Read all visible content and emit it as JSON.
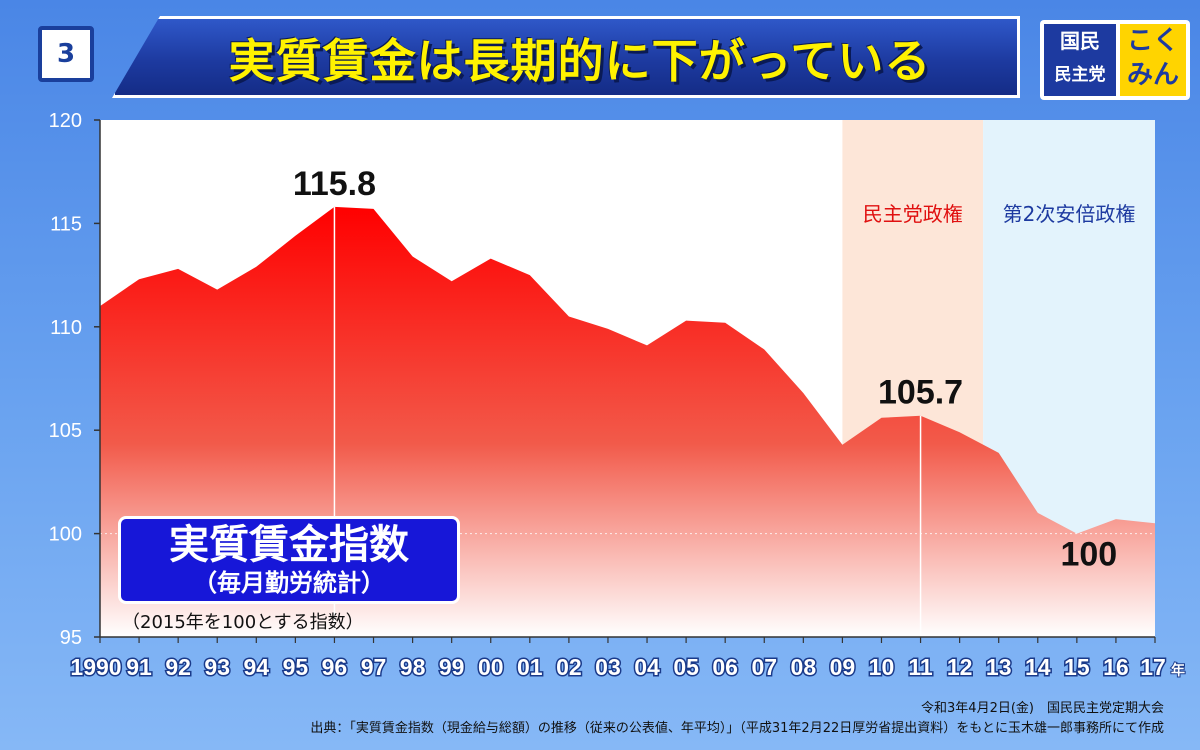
{
  "header": {
    "slide_number": "3",
    "title": "実質賃金は長期的に下がっている",
    "party_name_line1": "国民",
    "party_name_line2": "民主党",
    "party_kokumin_line1": "こく",
    "party_kokumin_line2": "みん"
  },
  "chart_data": {
    "type": "area",
    "x_labels": [
      "1990",
      "91",
      "92",
      "93",
      "94",
      "95",
      "96",
      "97",
      "98",
      "99",
      "00",
      "01",
      "02",
      "03",
      "04",
      "05",
      "06",
      "07",
      "08",
      "09",
      "10",
      "11",
      "12",
      "13",
      "14",
      "15",
      "16",
      "17"
    ],
    "x_unit": "年",
    "x": [
      1990,
      1991,
      1992,
      1993,
      1994,
      1995,
      1996,
      1997,
      1998,
      1999,
      2000,
      2001,
      2002,
      2003,
      2004,
      2005,
      2006,
      2007,
      2008,
      2009,
      2010,
      2011,
      2012,
      2013,
      2014,
      2015,
      2016,
      2017
    ],
    "values": [
      111.0,
      112.3,
      112.8,
      111.8,
      112.9,
      114.4,
      115.8,
      115.7,
      113.4,
      112.2,
      113.3,
      112.5,
      110.5,
      109.9,
      109.1,
      110.3,
      110.2,
      108.9,
      106.8,
      104.3,
      105.6,
      105.7,
      104.9,
      103.9,
      101.0,
      100.0,
      100.7,
      100.5
    ],
    "ylim": [
      95,
      120
    ],
    "yticks": [
      "95",
      "100",
      "105",
      "110",
      "115",
      "120"
    ],
    "grid": false,
    "reference_line": 100,
    "callouts": [
      {
        "x": 1996,
        "label": "115.8"
      },
      {
        "x": 2011,
        "label": "105.7"
      },
      {
        "x": 2015,
        "label": "100"
      }
    ],
    "eras": [
      {
        "label": "民主党政権",
        "start": 2009,
        "end": 2012.6,
        "color": "#fde6d8",
        "text_color": "#e01010"
      },
      {
        "label": "第2次安倍政権",
        "start": 2012.6,
        "end": 2017,
        "color": "#e3f3fc",
        "text_color": "#1d3aa0"
      }
    ],
    "colors": {
      "area_top": "#ff0000",
      "area_bottom": "#ffffff",
      "plot_bg": "#ffffff"
    }
  },
  "index_label": {
    "title": "実質賃金指数",
    "subtitle": "（毎月勤労統計）",
    "base_note": "（2015年を100とする指数）"
  },
  "footer": {
    "date_line": "令和3年4月2日(金)　国民民主党定期大会",
    "source_line": "出典：「実質賃金指数（現金給与総額）の推移（従来の公表値、年平均）」（平成31年2月22日厚労省提出資料）をもとに玉木雄一郎事務所にて作成"
  }
}
